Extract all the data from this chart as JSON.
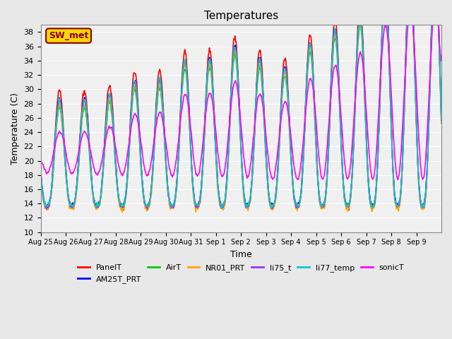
{
  "title": "Temperatures",
  "xlabel": "Time",
  "ylabel": "Temperature (C)",
  "ylim": [
    10,
    39
  ],
  "annotation_text": "SW_met",
  "annotation_color": "#8B0000",
  "annotation_bg": "#FFD700",
  "annotation_border": "#8B0000",
  "series": [
    {
      "label": "PanelT",
      "color": "#FF0000",
      "lw": 1.2
    },
    {
      "label": "AM25T_PRT",
      "color": "#0000FF",
      "lw": 1.2
    },
    {
      "label": "AirT",
      "color": "#00CC00",
      "lw": 1.2
    },
    {
      "label": "NR01_PRT",
      "color": "#FFA500",
      "lw": 1.2
    },
    {
      "label": "li75_t",
      "color": "#9933FF",
      "lw": 1.2
    },
    {
      "label": "li77_temp",
      "color": "#00CCCC",
      "lw": 1.2
    },
    {
      "label": "sonicT",
      "color": "#FF00FF",
      "lw": 1.2
    }
  ],
  "x_tick_labels": [
    "Aug 25",
    "Aug 26",
    "Aug 27",
    "Aug 28",
    "Aug 29",
    "Aug 30",
    "Aug 31",
    "Sep 1",
    "Sep 2",
    "Sep 3",
    "Sep 4",
    "Sep 5",
    "Sep 6",
    "Sep 7",
    "Sep 8",
    "Sep 9"
  ],
  "bg_color": "#E8E8E8",
  "plot_bg": "#F0F0F0"
}
